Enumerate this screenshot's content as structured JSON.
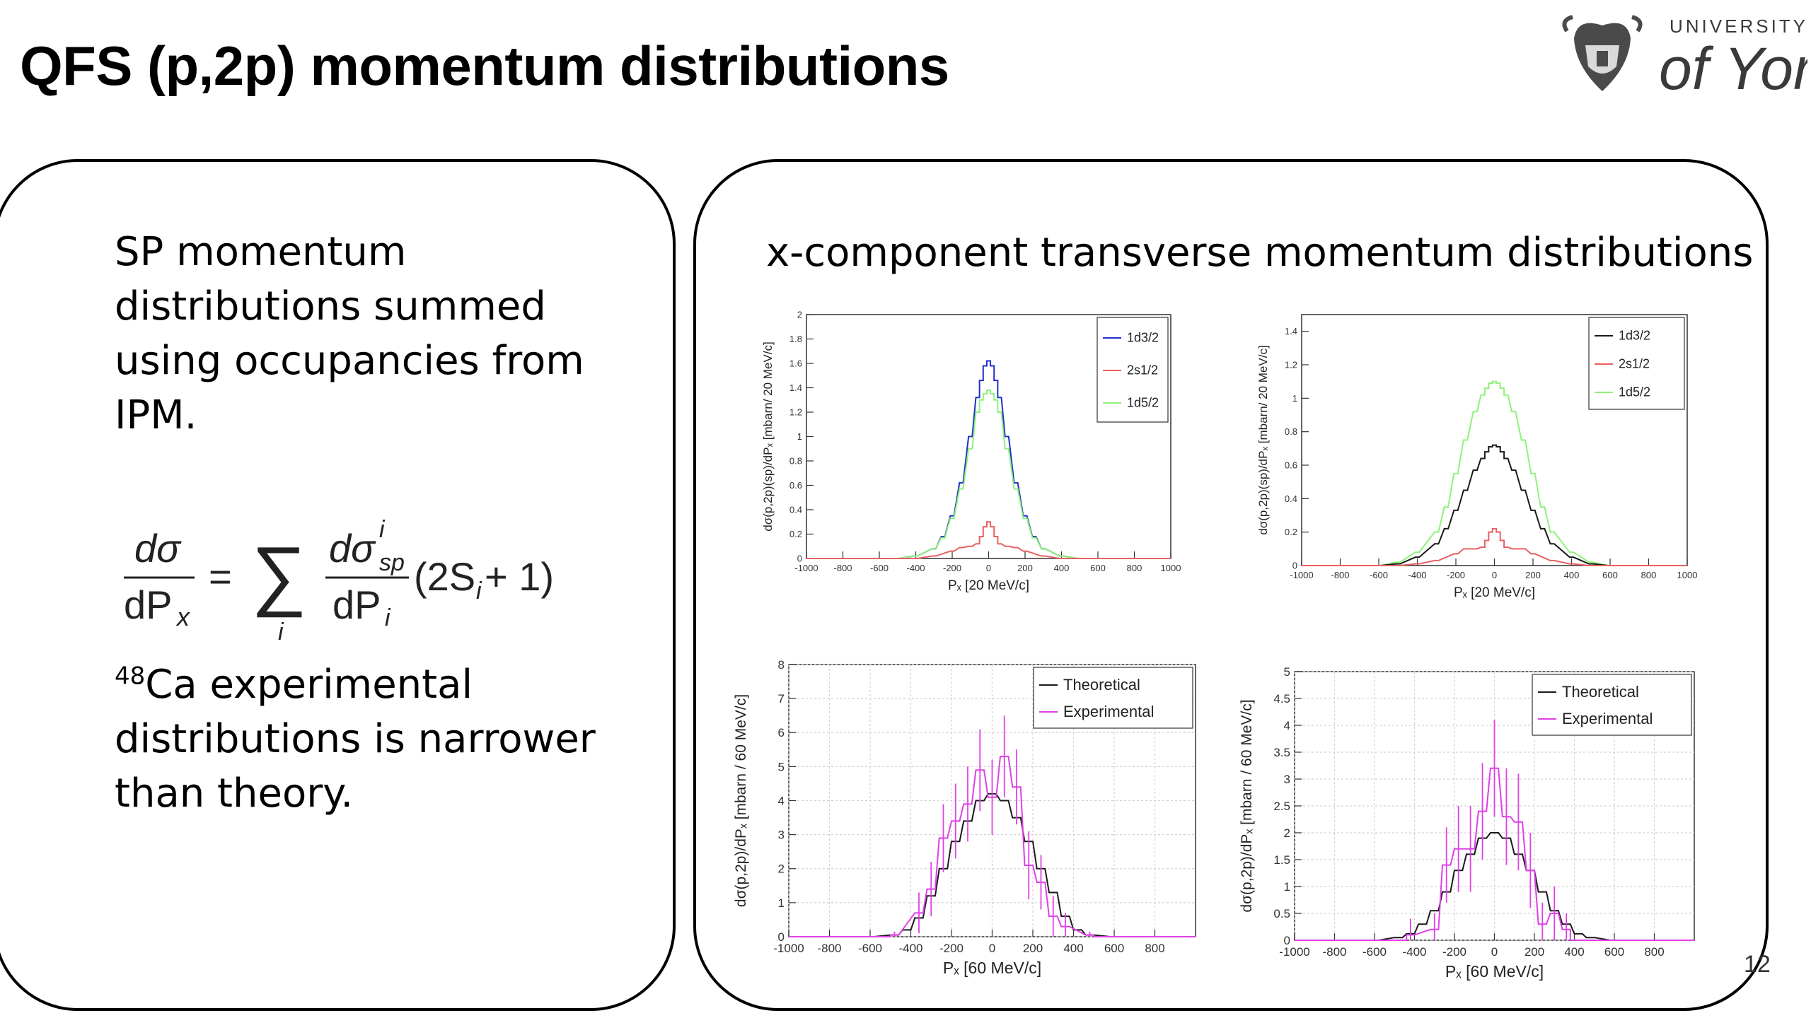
{
  "slide": {
    "title": "QFS (p,2p) momentum distributions",
    "page_number": "12",
    "logo_text": {
      "top": "UNIVERSITY",
      "bottom": "of York"
    }
  },
  "left_panel": {
    "para1": "SP momentum distributions summed using occupancies from IPM.",
    "equation": {
      "lhs_num": "dσ",
      "lhs_den": "dP",
      "lhs_sub": "x",
      "equals": "=",
      "sum_symbol": "∑",
      "sum_index": "i",
      "rhs_num": "dσ",
      "rhs_num_sup": "i",
      "rhs_num_sub": "sp",
      "rhs_den": "dP",
      "rhs_den_sub": "i",
      "factor": "(2S",
      "factor_sub": "i",
      "factor_end": " + 1)"
    },
    "para2_sup": "48",
    "para2": "Ca experimental distributions is narrower than theory."
  },
  "right_panel": {
    "title": "x-component transverse momentum distributions"
  },
  "colors": {
    "black": "#1a1a1a",
    "red": "#e86060",
    "green": "#8ef27a",
    "blue": "#2030c8",
    "magenta": "#e040e8",
    "grid": "#cfcfcf"
  },
  "chart_data": [
    {
      "type": "line",
      "id": "c1",
      "xlabel": "Pₓ [20 MeV/c]",
      "ylabel": "dσ(p,2p)(sp)/dPₓ [mbarn/ 20 MeV/c]",
      "xlim": [
        -1000,
        1000
      ],
      "ylim": [
        0,
        2
      ],
      "xticks": [
        -1000,
        -800,
        -600,
        -400,
        -200,
        0,
        200,
        400,
        600,
        800,
        1000
      ],
      "yticks": [
        0,
        0.2,
        0.4,
        0.6,
        0.8,
        1,
        1.2,
        1.4,
        1.6,
        1.8,
        2
      ],
      "ytick_labels": [
        "0",
        "0.2",
        "0.4",
        "0.6",
        "0.8",
        "1",
        "1.2",
        "1.4",
        "1.6",
        "1.8",
        "2"
      ],
      "grid": false,
      "legend": {
        "position": "top-right",
        "entries": [
          "1d3/2",
          "2s1/2",
          "1d5/2"
        ]
      },
      "series": [
        {
          "name": "1d3/2",
          "color": "#2030c8",
          "step": 20,
          "x": [
            -500,
            -400,
            -300,
            -250,
            -200,
            -150,
            -100,
            -60,
            -40,
            -20,
            0,
            20,
            40,
            60,
            100,
            150,
            200,
            250,
            300,
            400,
            500
          ],
          "y": [
            0,
            0.02,
            0.08,
            0.18,
            0.35,
            0.62,
            1.0,
            1.32,
            1.46,
            1.58,
            1.62,
            1.58,
            1.46,
            1.32,
            1.0,
            0.62,
            0.35,
            0.18,
            0.08,
            0.02,
            0
          ]
        },
        {
          "name": "1d5/2",
          "color": "#8ef27a",
          "step": 20,
          "x": [
            -500,
            -400,
            -300,
            -250,
            -200,
            -150,
            -100,
            -60,
            -40,
            -20,
            0,
            20,
            40,
            60,
            100,
            150,
            200,
            250,
            300,
            400,
            500
          ],
          "y": [
            0,
            0.02,
            0.08,
            0.17,
            0.33,
            0.57,
            0.9,
            1.2,
            1.3,
            1.35,
            1.38,
            1.35,
            1.3,
            1.2,
            0.9,
            0.57,
            0.33,
            0.17,
            0.08,
            0.02,
            0
          ]
        },
        {
          "name": "2s1/2",
          "color": "#e86060",
          "step": 20,
          "x": [
            -400,
            -300,
            -200,
            -150,
            -100,
            -60,
            -40,
            -20,
            0,
            20,
            40,
            60,
            100,
            150,
            200,
            300,
            400
          ],
          "y": [
            0,
            0.02,
            0.06,
            0.09,
            0.1,
            0.12,
            0.18,
            0.26,
            0.3,
            0.26,
            0.18,
            0.12,
            0.1,
            0.09,
            0.06,
            0.02,
            0
          ]
        }
      ]
    },
    {
      "type": "line",
      "id": "c2",
      "xlabel": "Pₓ [20 MeV/c]",
      "ylabel": "dσ(p,2p)(sp)/dPₓ [mbarn/ 20 MeV/c]",
      "xlim": [
        -1000,
        1000
      ],
      "ylim": [
        0,
        1.5
      ],
      "xticks": [
        -1000,
        -800,
        -600,
        -400,
        -200,
        0,
        200,
        400,
        600,
        800,
        1000
      ],
      "yticks": [
        0,
        0.2,
        0.4,
        0.6,
        0.8,
        1,
        1.2,
        1.4
      ],
      "ytick_labels": [
        "0",
        "0.2",
        "0.4",
        "0.6",
        "0.8",
        "1",
        "1.2",
        "1.4"
      ],
      "grid": false,
      "legend": {
        "position": "top-right",
        "entries": [
          "1d3/2",
          "2s1/2",
          "1d5/2"
        ]
      },
      "series": [
        {
          "name": "1d5/2",
          "color": "#8ef27a",
          "step": 20,
          "x": [
            -600,
            -500,
            -400,
            -300,
            -250,
            -200,
            -150,
            -100,
            -60,
            -40,
            -20,
            0,
            20,
            40,
            60,
            100,
            150,
            200,
            250,
            300,
            400,
            500,
            600
          ],
          "y": [
            0,
            0.02,
            0.08,
            0.2,
            0.35,
            0.55,
            0.75,
            0.92,
            1.02,
            1.06,
            1.09,
            1.1,
            1.09,
            1.06,
            1.02,
            0.92,
            0.75,
            0.55,
            0.35,
            0.2,
            0.08,
            0.02,
            0
          ]
        },
        {
          "name": "1d3/2",
          "color": "#1a1a1a",
          "step": 20,
          "x": [
            -600,
            -500,
            -400,
            -300,
            -250,
            -200,
            -150,
            -100,
            -60,
            -40,
            -20,
            0,
            20,
            40,
            60,
            100,
            150,
            200,
            250,
            300,
            400,
            500,
            600
          ],
          "y": [
            0,
            0.01,
            0.05,
            0.13,
            0.22,
            0.33,
            0.45,
            0.57,
            0.64,
            0.68,
            0.71,
            0.72,
            0.71,
            0.68,
            0.64,
            0.57,
            0.45,
            0.33,
            0.22,
            0.13,
            0.05,
            0.01,
            0
          ]
        },
        {
          "name": "2s1/2",
          "color": "#e86060",
          "step": 20,
          "x": [
            -500,
            -400,
            -300,
            -200,
            -150,
            -100,
            -60,
            -40,
            -20,
            0,
            20,
            40,
            60,
            100,
            150,
            200,
            300,
            400,
            500
          ],
          "y": [
            0,
            0.01,
            0.03,
            0.07,
            0.1,
            0.1,
            0.11,
            0.15,
            0.2,
            0.22,
            0.2,
            0.15,
            0.11,
            0.1,
            0.1,
            0.07,
            0.03,
            0.01,
            0
          ]
        }
      ]
    },
    {
      "type": "line",
      "id": "c3",
      "xlabel": "Pₓ [60 MeV/c]",
      "ylabel": "dσ(p,2p)/dPₓ [mbarn / 60 MeV/c]",
      "xlim": [
        -1000,
        1000
      ],
      "ylim": [
        0,
        8
      ],
      "xticks": [
        -1000,
        -800,
        -600,
        -400,
        -200,
        0,
        200,
        400,
        600,
        800
      ],
      "yticks": [
        0,
        1,
        2,
        3,
        4,
        5,
        6,
        7,
        8
      ],
      "ytick_labels": [
        "0",
        "1",
        "2",
        "3",
        "4",
        "5",
        "6",
        "7",
        "8"
      ],
      "grid": true,
      "legend": {
        "position": "top-right",
        "entries": [
          "Theoretical",
          "Experimental"
        ]
      },
      "series": [
        {
          "name": "Theoretical",
          "color": "#1a1a1a",
          "step": 40,
          "x": [
            -600,
            -480,
            -420,
            -360,
            -300,
            -240,
            -180,
            -120,
            -60,
            0,
            60,
            120,
            180,
            240,
            300,
            360,
            420,
            480,
            600
          ],
          "y": [
            0,
            0.05,
            0.2,
            0.55,
            1.2,
            2.0,
            2.8,
            3.4,
            4.0,
            4.2,
            4.0,
            3.5,
            2.8,
            2.0,
            1.3,
            0.6,
            0.2,
            0.05,
            0
          ]
        },
        {
          "name": "Experimental",
          "color": "#e040e8",
          "step": 40,
          "errors": true,
          "x": [
            -480,
            -360,
            -300,
            -240,
            -180,
            -120,
            -60,
            0,
            60,
            120,
            180,
            240,
            300,
            360,
            480
          ],
          "y": [
            0.05,
            0.7,
            1.4,
            2.9,
            3.4,
            3.9,
            4.9,
            4.1,
            5.3,
            4.4,
            2.1,
            1.6,
            0.6,
            0.3,
            0.05
          ],
          "err": [
            0.1,
            0.6,
            0.8,
            1.0,
            1.1,
            1.1,
            1.2,
            1.1,
            1.2,
            1.1,
            1.0,
            0.8,
            0.6,
            0.4,
            0.1
          ]
        }
      ]
    },
    {
      "type": "line",
      "id": "c4",
      "xlabel": "Pₓ [60 MeV/c]",
      "ylabel": "dσ(p,2p)/dPₓ [mbarn / 60 MeV/c]",
      "xlim": [
        -1000,
        1000
      ],
      "ylim": [
        0,
        5
      ],
      "xticks": [
        -1000,
        -800,
        -600,
        -400,
        -200,
        0,
        200,
        400,
        600,
        800
      ],
      "yticks": [
        0,
        0.5,
        1,
        1.5,
        2,
        2.5,
        3,
        3.5,
        4,
        4.5,
        5
      ],
      "ytick_labels": [
        "0",
        "0.5",
        "1",
        "1.5",
        "2",
        "2.5",
        "3",
        "3.5",
        "4",
        "4.5",
        "5"
      ],
      "grid": true,
      "legend": {
        "position": "top-right",
        "entries": [
          "Theoretical",
          "Experimental"
        ]
      },
      "series": [
        {
          "name": "Theoretical",
          "color": "#1a1a1a",
          "step": 40,
          "x": [
            -600,
            -480,
            -420,
            -360,
            -300,
            -240,
            -180,
            -120,
            -60,
            0,
            60,
            120,
            180,
            240,
            300,
            360,
            420,
            480,
            600
          ],
          "y": [
            0,
            0.05,
            0.12,
            0.3,
            0.55,
            0.9,
            1.3,
            1.6,
            1.9,
            2.0,
            1.9,
            1.6,
            1.3,
            0.9,
            0.55,
            0.3,
            0.12,
            0.05,
            0
          ]
        },
        {
          "name": "Experimental",
          "color": "#e040e8",
          "step": 40,
          "errors": true,
          "x": [
            -420,
            -300,
            -240,
            -180,
            -120,
            -60,
            0,
            60,
            120,
            180,
            240,
            300,
            360
          ],
          "y": [
            0.1,
            0.2,
            1.4,
            1.7,
            1.7,
            2.4,
            3.2,
            2.3,
            2.2,
            1.3,
            0.3,
            0.5,
            0.2
          ],
          "err": [
            0.3,
            0.3,
            0.7,
            0.8,
            0.8,
            0.9,
            0.9,
            0.9,
            0.9,
            0.7,
            0.4,
            0.5,
            0.3
          ]
        }
      ]
    }
  ]
}
